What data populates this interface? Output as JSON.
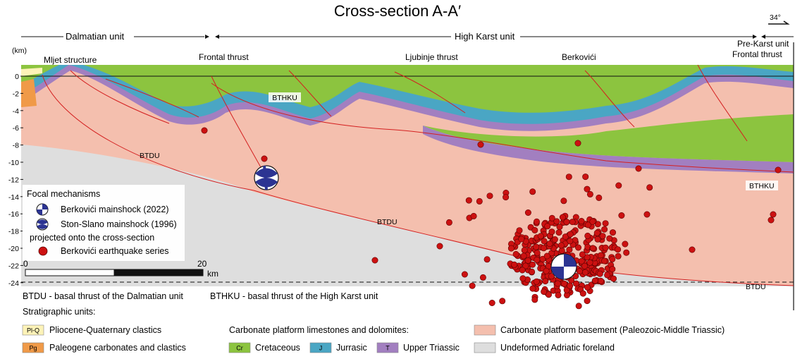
{
  "title": "Cross-section A-A′",
  "azimuth": "34°",
  "units": [
    "Dalmatian unit",
    "High Karst unit",
    "Pre-Karst unit"
  ],
  "structures": {
    "mljet": "Mljet structure",
    "frontal": "Frontal thrust",
    "ljubinje": "Ljubinje thrust",
    "berkovici": "Berkovići",
    "frontal_right": "Frontal thrust"
  },
  "faults": {
    "bthku": "BTHKU",
    "btdu": "BTDU"
  },
  "depth_axis": {
    "unit": "(km)",
    "ticks": [
      "0",
      "-2",
      "-4",
      "-6",
      "-8",
      "-10",
      "-12",
      "-14",
      "-16",
      "-18",
      "-20",
      "-22",
      "-24"
    ]
  },
  "scale": {
    "start": "0",
    "end": "20",
    "unit": "km"
  },
  "legend": {
    "focal_title": "Focal mechanisms",
    "items": [
      "Berkovići mainshock (2022)",
      "Ston-Slano mainshock (1996)"
    ],
    "projected": "projected onto the cross-section",
    "series": "Berkovići earthquake series"
  },
  "abbreviations": {
    "btdu": "BTDU - basal thrust of the Dalmatian unit",
    "bthku": "BTHKU - basal thrust of the High Karst unit"
  },
  "strat": {
    "title": "Stratigraphic units:",
    "carb_title": "Carbonate platform limestones and dolomites:",
    "plq_code": "Pl-Q",
    "plq": "Pliocene-Quaternary clastics",
    "pg_code": "Pg",
    "pg": "Paleogene carbonates and clastics",
    "cr_code": "Cr",
    "cr": "Cretaceous",
    "j_code": "J",
    "j": "Jurrasic",
    "t_code": "T",
    "t": "Upper Triassic",
    "basement": "Carbonate platform basement (Paleozoic-Middle Triassic)",
    "foreland": "Undeformed Adriatic foreland"
  },
  "colors": {
    "cretaceous": "#8cc43f",
    "jurassic": "#4aa6c4",
    "triassic": "#a27fc0",
    "basement": "#f4bfae",
    "foreland": "#dedede",
    "paleogene": "#f09a48",
    "pliocene": "#fdf3b8",
    "fault": "#d42020",
    "quake": "#cc1111",
    "focal": "#2c3492"
  }
}
